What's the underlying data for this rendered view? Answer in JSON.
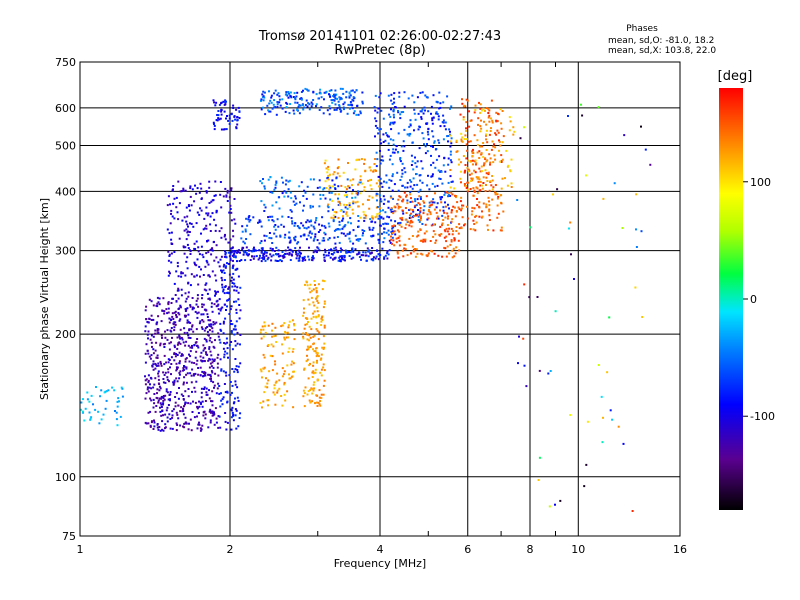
{
  "chart_data": {
    "type": "scatter",
    "title": "Tromsø 20141101 02:26:00-02:27:43",
    "subtitle": "RwPretec (8p)",
    "xlabel": "Frequency [MHz]",
    "ylabel": "Stationary phase Virtual Height [km]",
    "x_scale": "log",
    "y_scale": "log",
    "xlim": [
      1,
      16
    ],
    "ylim": [
      75,
      750
    ],
    "x_ticks": [
      1,
      2,
      4,
      6,
      8,
      10,
      16
    ],
    "x_minor_ticks": [
      3,
      5,
      7,
      9
    ],
    "y_ticks": [
      75,
      100,
      200,
      300,
      400,
      500,
      600,
      750
    ],
    "grid": true,
    "stats_header": "Phases",
    "stats": [
      "mean, sd,O: -81.0, 18.2",
      "mean, sd,X: 103.8, 22.0"
    ],
    "colorbar": {
      "label": "[deg]",
      "min": -180,
      "max": 180,
      "ticks": [
        100,
        0,
        -100
      ]
    },
    "point_groups": [
      {
        "f": [
          1.0,
          1.22
        ],
        "h": [
          128,
          155
        ],
        "phase": [
          -5,
          -45
        ],
        "n": 45
      },
      {
        "f": [
          1.35,
          1.9
        ],
        "h": [
          125,
          240
        ],
        "phase": [
          -140,
          -100
        ],
        "n": 650
      },
      {
        "f": [
          1.5,
          2.05
        ],
        "h": [
          240,
          420
        ],
        "phase": [
          -125,
          -90
        ],
        "n": 260
      },
      {
        "f": [
          1.9,
          2.1
        ],
        "h": [
          125,
          300
        ],
        "phase": [
          -110,
          -70
        ],
        "n": 180
      },
      {
        "f": [
          1.85,
          2.1
        ],
        "h": [
          540,
          625
        ],
        "phase": [
          -110,
          -70
        ],
        "n": 60
      },
      {
        "f": [
          2.0,
          4.2
        ],
        "h": [
          285,
          305
        ],
        "phase": [
          -120,
          -60
        ],
        "n": 260
      },
      {
        "f": [
          2.1,
          4.3
        ],
        "h": [
          310,
          355
        ],
        "phase": [
          -100,
          -40
        ],
        "n": 220
      },
      {
        "f": [
          2.3,
          3.7
        ],
        "h": [
          360,
          430
        ],
        "phase": [
          -90,
          -30
        ],
        "n": 110
      },
      {
        "f": [
          2.3,
          3.7
        ],
        "h": [
          580,
          660
        ],
        "phase": [
          -90,
          -30
        ],
        "n": 200
      },
      {
        "f": [
          2.3,
          2.7
        ],
        "h": [
          140,
          215
        ],
        "phase": [
          105,
          140
        ],
        "n": 110
      },
      {
        "f": [
          2.8,
          3.1
        ],
        "h": [
          140,
          260
        ],
        "phase": [
          110,
          140
        ],
        "n": 170
      },
      {
        "f": [
          3.1,
          4.0
        ],
        "h": [
          350,
          470
        ],
        "phase": [
          100,
          145
        ],
        "n": 120
      },
      {
        "f": [
          3.9,
          5.6
        ],
        "h": [
          340,
          650
        ],
        "phase": [
          -100,
          -40
        ],
        "n": 380
      },
      {
        "f": [
          4.2,
          5.8
        ],
        "h": [
          290,
          400
        ],
        "phase": [
          130,
          170
        ],
        "n": 220
      },
      {
        "f": [
          5.8,
          7.1
        ],
        "h": [
          330,
          630
        ],
        "phase": [
          125,
          175
        ],
        "n": 220
      },
      {
        "f": [
          5.5,
          7.5
        ],
        "h": [
          400,
          600
        ],
        "phase": [
          100,
          140
        ],
        "n": 90
      },
      {
        "f": [
          7.5,
          14
        ],
        "h": [
          80,
          650
        ],
        "phase": [
          -180,
          180
        ],
        "n": 60
      }
    ]
  }
}
